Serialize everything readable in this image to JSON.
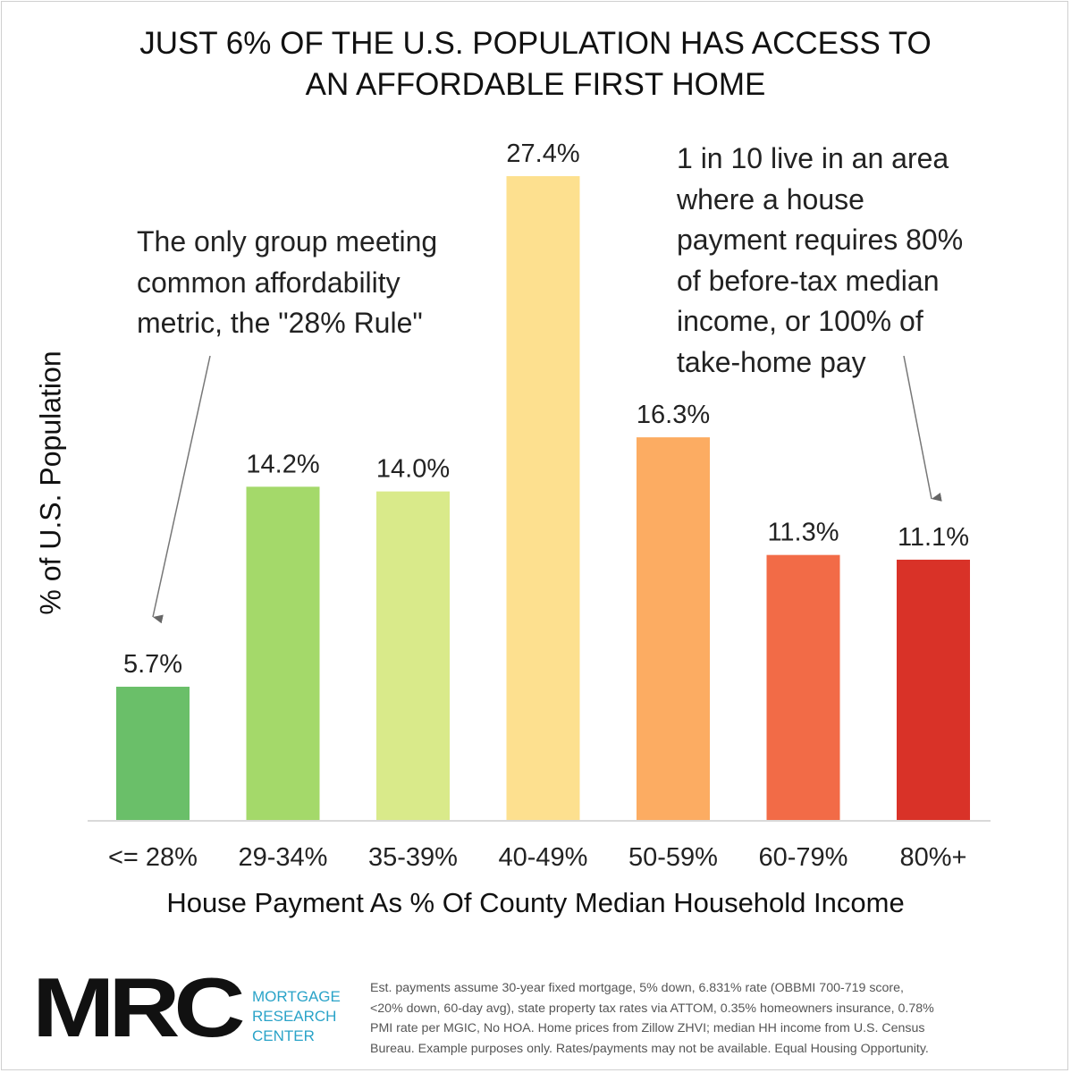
{
  "title_lines": [
    "JUST 6% OF THE U.S. POPULATION HAS ACCESS TO",
    "AN AFFORDABLE FIRST HOME"
  ],
  "annotations": {
    "left": [
      "The only group meeting",
      "common affordability",
      "metric, the \"28% Rule\""
    ],
    "right": [
      "1 in 10 live in an area",
      "where a house",
      "payment requires 80%",
      "of before-tax median",
      "income, or 100% of",
      "take-home pay"
    ]
  },
  "logo": {
    "mark": "MRC",
    "lines": [
      "MORTGAGE",
      "RESEARCH",
      "CENTER"
    ]
  },
  "footnote_lines": [
    "Est. payments assume 30-year fixed mortgage, 5% down, 6.831% rate (OBBMI 700-719 score,",
    "<20% down, 60-day avg), state property tax rates via ATTOM, 0.35% homeowners insurance, 0.78%",
    "PMI rate per MGIC, No HOA. Home prices from Zillow ZHVI; median HH income from U.S. Census",
    "Bureau. Example purposes only. Rates/payments may not be available. Equal Housing Opportunity."
  ],
  "colors": {
    "text": "#111111",
    "logo_accent": "#2aa3c8",
    "axis": "#d9d9d9",
    "arrow": "#666666"
  },
  "chart_data": {
    "type": "bar",
    "title": "JUST 6% OF THE U.S. POPULATION HAS ACCESS TO AN AFFORDABLE FIRST HOME",
    "xlabel": "House Payment As % Of County Median Household Income",
    "ylabel": "% of U.S. Population",
    "categories": [
      "<= 28%",
      "29-34%",
      "35-39%",
      "40-49%",
      "50-59%",
      "60-79%",
      "80%+"
    ],
    "values": [
      5.7,
      14.2,
      14.0,
      27.4,
      16.3,
      11.3,
      11.1
    ],
    "value_labels": [
      "5.7%",
      "14.2%",
      "14.0%",
      "27.4%",
      "16.3%",
      "11.3%",
      "11.1%"
    ],
    "bar_colors": [
      "#6abf69",
      "#a4d96a",
      "#d9ea8a",
      "#fde08f",
      "#fcac62",
      "#f26b47",
      "#d93228"
    ],
    "ylim": [
      0,
      27.4
    ],
    "grid": false,
    "legend": "none"
  }
}
